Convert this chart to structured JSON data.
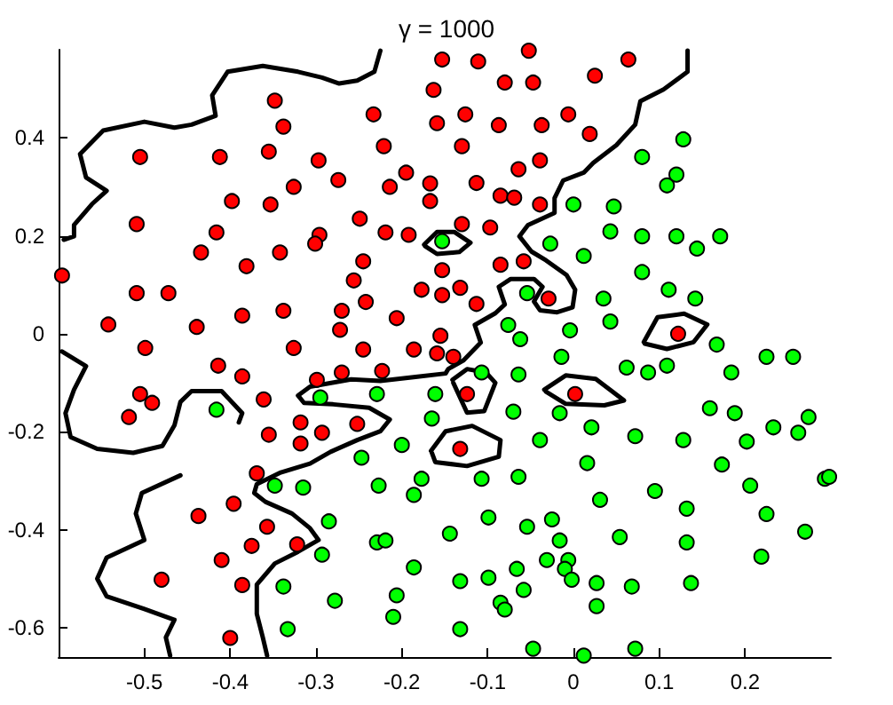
{
  "chart_data": {
    "type": "scatter",
    "title": "γ = 1000",
    "xlim": [
      -0.6,
      0.3
    ],
    "ylim": [
      -0.66,
      0.58
    ],
    "xticks": [
      -0.5,
      -0.4,
      -0.3,
      -0.2,
      -0.1,
      0,
      0.1,
      0.2
    ],
    "yticks": [
      -0.6,
      -0.4,
      -0.2,
      0,
      0.2,
      0.4
    ],
    "grid": false,
    "marker": "circle",
    "series": [
      {
        "color": "#ff0000",
        "x": [
          -0.348,
          -0.338,
          -0.505,
          -0.412,
          -0.355,
          -0.297,
          -0.274,
          -0.233,
          -0.221,
          -0.195,
          -0.214,
          -0.167,
          -0.167,
          -0.163,
          -0.159,
          -0.153,
          -0.398,
          -0.353,
          -0.326,
          -0.509,
          -0.416,
          -0.434,
          -0.342,
          -0.296,
          -0.301,
          -0.249,
          -0.219,
          -0.192,
          -0.596,
          -0.381,
          -0.245,
          -0.256,
          -0.153,
          -0.509,
          -0.472,
          -0.242,
          -0.177,
          -0.153,
          -0.542,
          -0.439,
          -0.386,
          -0.338,
          -0.27,
          -0.272,
          -0.206,
          -0.155,
          -0.111,
          -0.052,
          0.064,
          0.025,
          -0.08,
          -0.047,
          -0.126,
          -0.087,
          -0.037,
          -0.006,
          0.019,
          -0.13,
          -0.064,
          -0.039,
          -0.113,
          -0.085,
          -0.069,
          -0.039,
          -0.13,
          -0.097,
          -0.085,
          -0.058,
          -0.132,
          -0.113,
          -0.029,
          0.122,
          -0.159,
          -0.14,
          -0.499,
          -0.326,
          -0.245,
          -0.186,
          -0.414,
          -0.386,
          -0.299,
          -0.27,
          -0.223,
          -0.505,
          -0.491,
          -0.518,
          -0.361,
          -0.355,
          -0.318,
          -0.293,
          -0.252,
          -0.318,
          -0.369,
          -0.396,
          -0.437,
          -0.357,
          -0.375,
          -0.322,
          -0.41,
          -0.48,
          -0.386,
          -0.4,
          -0.124,
          0.002,
          -0.132
        ],
        "values": [
          0.476,
          0.423,
          0.361,
          0.361,
          0.372,
          0.354,
          0.314,
          0.448,
          0.383,
          0.329,
          0.3,
          0.307,
          0.271,
          0.498,
          0.43,
          0.56,
          0.271,
          0.264,
          0.3,
          0.224,
          0.207,
          0.166,
          0.166,
          0.202,
          0.184,
          0.235,
          0.207,
          0.202,
          0.119,
          0.138,
          0.148,
          0.109,
          0.13,
          0.083,
          0.083,
          0.065,
          0.09,
          0.079,
          0.019,
          0.014,
          0.037,
          0.047,
          0.047,
          0.008,
          0.032,
          -0.004,
          0.556,
          0.578,
          0.56,
          0.527,
          0.513,
          0.513,
          0.448,
          0.426,
          0.426,
          0.448,
          0.408,
          0.383,
          0.336,
          0.354,
          0.308,
          0.282,
          0.278,
          0.264,
          0.224,
          0.217,
          0.141,
          0.148,
          0.094,
          0.061,
          0.072,
          0.0,
          -0.04,
          -0.047,
          -0.029,
          -0.029,
          -0.032,
          -0.032,
          -0.065,
          -0.087,
          -0.094,
          -0.079,
          -0.076,
          -0.123,
          -0.141,
          -0.17,
          -0.134,
          -0.206,
          -0.181,
          -0.202,
          -0.184,
          -0.224,
          -0.285,
          -0.347,
          -0.372,
          -0.394,
          -0.433,
          -0.43,
          -0.462,
          -0.502,
          -0.513,
          -0.621,
          -0.123,
          -0.123,
          -0.235
        ]
      },
      {
        "color": "#00ff00",
        "x": [
          -0.153,
          0.128,
          0.08,
          0.12,
          0.109,
          0.0,
          0.047,
          0.043,
          0.08,
          0.12,
          0.171,
          0.144,
          -0.027,
          0.012,
          0.08,
          0.111,
          0.142,
          0.035,
          -0.054,
          -0.076,
          -0.004,
          0.043,
          -0.062,
          0.167,
          -0.014,
          0.225,
          0.256,
          -0.416,
          -0.295,
          -0.229,
          -0.161,
          -0.165,
          -0.2,
          -0.247,
          -0.348,
          -0.315,
          -0.227,
          -0.177,
          -0.186,
          -0.285,
          -0.229,
          -0.219,
          -0.293,
          -0.186,
          -0.338,
          -0.278,
          -0.206,
          -0.21,
          -0.333,
          -0.107,
          -0.064,
          0.062,
          0.087,
          0.109,
          0.184,
          -0.07,
          -0.016,
          0.159,
          0.188,
          0.274,
          0.021,
          0.233,
          0.262,
          0.072,
          0.128,
          0.202,
          -0.039,
          0.173,
          0.016,
          -0.107,
          -0.064,
          0.206,
          0.293,
          0.298,
          0.031,
          0.095,
          0.132,
          0.225,
          0.27,
          -0.144,
          -0.099,
          -0.054,
          -0.025,
          -0.016,
          0.054,
          0.132,
          0.219,
          -0.031,
          -0.006,
          -0.01,
          -0.066,
          -0.002,
          0.027,
          0.068,
          0.137,
          -0.132,
          -0.099,
          -0.058,
          -0.085,
          -0.08,
          0.027,
          -0.132,
          -0.047,
          0.012,
          0.072
        ],
        "values": [
          0.189,
          0.397,
          0.361,
          0.325,
          0.303,
          0.264,
          0.26,
          0.209,
          0.199,
          0.199,
          0.199,
          0.174,
          0.184,
          0.159,
          0.126,
          0.09,
          0.072,
          0.072,
          0.083,
          0.018,
          0.007,
          0.025,
          -0.011,
          -0.022,
          -0.047,
          -0.047,
          -0.047,
          -0.155,
          -0.13,
          -0.123,
          -0.123,
          -0.173,
          -0.227,
          -0.253,
          -0.31,
          -0.314,
          -0.31,
          -0.296,
          -0.329,
          -0.383,
          -0.426,
          -0.422,
          -0.451,
          -0.477,
          -0.516,
          -0.545,
          -0.534,
          -0.578,
          -0.603,
          -0.079,
          -0.083,
          -0.069,
          -0.079,
          -0.065,
          -0.079,
          -0.159,
          -0.162,
          -0.152,
          -0.162,
          -0.17,
          -0.191,
          -0.191,
          -0.202,
          -0.209,
          -0.217,
          -0.22,
          -0.217,
          -0.267,
          -0.264,
          -0.296,
          -0.292,
          -0.31,
          -0.296,
          -0.292,
          -0.339,
          -0.321,
          -0.357,
          -0.368,
          -0.404,
          -0.408,
          -0.375,
          -0.394,
          -0.379,
          -0.422,
          -0.415,
          -0.426,
          -0.455,
          -0.462,
          -0.462,
          -0.48,
          -0.48,
          -0.502,
          -0.509,
          -0.516,
          -0.509,
          -0.505,
          -0.498,
          -0.523,
          -0.549,
          -0.563,
          -0.556,
          -0.603,
          -0.643,
          -0.657,
          -0.643
        ]
      },
      {
        "type": "line",
        "color": "#000000",
        "marker": "none",
        "x": [
          -0.225,
          -0.232,
          -0.252,
          -0.273,
          -0.293,
          -0.321,
          -0.362,
          -0.403,
          -0.421,
          -0.417,
          -0.445,
          -0.465,
          -0.5,
          -0.548,
          -0.575,
          -0.568,
          -0.544,
          -0.561,
          -0.582,
          -0.582,
          -0.594
        ],
        "values": [
          0.578,
          0.535,
          0.517,
          0.511,
          0.523,
          0.535,
          0.547,
          0.535,
          0.487,
          0.445,
          0.427,
          0.421,
          0.433,
          0.415,
          0.367,
          0.319,
          0.292,
          0.265,
          0.222,
          0.199,
          0.192
        ]
      },
      {
        "type": "line",
        "color": "#000000",
        "marker": "none",
        "x": [
          0.133,
          0.133,
          0.105,
          0.078,
          0.072,
          0.05,
          0.023,
          0.012,
          -0.012,
          -0.022,
          -0.022,
          -0.053,
          -0.063,
          -0.049,
          -0.032,
          -0.008,
          0.002,
          -0.001,
          -0.019,
          -0.039,
          -0.046,
          -0.036,
          -0.046,
          -0.073,
          -0.087,
          -0.08,
          -0.091,
          -0.115,
          -0.108,
          -0.128,
          -0.146,
          -0.149,
          -0.184,
          -0.225,
          -0.259,
          -0.307,
          -0.321,
          -0.314,
          -0.28,
          -0.238,
          -0.214,
          -0.225,
          -0.252,
          -0.283,
          -0.307,
          -0.341,
          -0.369,
          -0.372,
          -0.359,
          -0.328,
          -0.307,
          -0.297,
          -0.321,
          -0.348,
          -0.369,
          -0.369,
          -0.362,
          -0.357
        ],
        "values": [
          0.578,
          0.535,
          0.499,
          0.475,
          0.427,
          0.385,
          0.349,
          0.329,
          0.313,
          0.277,
          0.247,
          0.222,
          0.199,
          0.168,
          0.15,
          0.12,
          0.09,
          0.054,
          0.044,
          0.048,
          0.066,
          0.096,
          0.112,
          0.112,
          0.096,
          0.06,
          0.042,
          0.018,
          -0.018,
          -0.054,
          -0.072,
          -0.081,
          -0.088,
          -0.096,
          -0.093,
          -0.108,
          -0.126,
          -0.141,
          -0.144,
          -0.151,
          -0.175,
          -0.199,
          -0.217,
          -0.241,
          -0.265,
          -0.283,
          -0.307,
          -0.325,
          -0.343,
          -0.367,
          -0.397,
          -0.421,
          -0.445,
          -0.469,
          -0.512,
          -0.572,
          -0.62,
          -0.657
        ]
      },
      {
        "type": "line",
        "color": "#000000",
        "marker": "none",
        "x": [
          -0.596,
          -0.568,
          -0.582,
          -0.592,
          -0.586,
          -0.555,
          -0.513,
          -0.479,
          -0.465,
          -0.458,
          -0.445,
          -0.41,
          -0.386,
          -0.39
        ],
        "values": [
          -0.036,
          -0.066,
          -0.114,
          -0.162,
          -0.211,
          -0.235,
          -0.243,
          -0.229,
          -0.187,
          -0.139,
          -0.117,
          -0.117,
          -0.162,
          -0.181
        ]
      },
      {
        "type": "line",
        "color": "#000000",
        "marker": "none",
        "x": [
          -0.47,
          -0.475,
          -0.465,
          -0.5,
          -0.544,
          -0.555,
          -0.544,
          -0.5,
          -0.51,
          -0.503,
          -0.458
        ],
        "values": [
          -0.657,
          -0.62,
          -0.584,
          -0.562,
          -0.536,
          -0.5,
          -0.457,
          -0.421,
          -0.367,
          -0.325,
          -0.289
        ]
      },
      {
        "type": "line",
        "color": "#000000",
        "marker": "none",
        "x": [
          -0.174,
          -0.159,
          -0.139,
          -0.12,
          -0.133,
          -0.159,
          -0.173
        ],
        "values": [
          0.182,
          0.208,
          0.208,
          0.186,
          0.167,
          0.163,
          0.179
        ]
      },
      {
        "type": "line",
        "color": "#000000",
        "marker": "none",
        "x": [
          0.082,
          0.098,
          0.129,
          0.156,
          0.14,
          0.109,
          0.083
        ],
        "values": [
          -0.017,
          0.034,
          0.041,
          0.019,
          -0.017,
          -0.031,
          -0.02
        ]
      },
      {
        "type": "line",
        "color": "#000000",
        "marker": "none",
        "x": [
          -0.141,
          -0.124,
          -0.102,
          -0.091,
          -0.104,
          -0.124,
          -0.14
        ],
        "values": [
          -0.094,
          -0.072,
          -0.079,
          -0.1,
          -0.158,
          -0.161,
          -0.1
        ]
      },
      {
        "type": "line",
        "color": "#000000",
        "marker": "none",
        "x": [
          -0.034,
          -0.009,
          0.026,
          0.059,
          0.036,
          -0.009,
          -0.032
        ],
        "values": [
          -0.114,
          -0.085,
          -0.092,
          -0.136,
          -0.146,
          -0.143,
          -0.118
        ]
      },
      {
        "type": "line",
        "color": "#000000",
        "marker": "none",
        "x": [
          -0.166,
          -0.149,
          -0.118,
          -0.085,
          -0.087,
          -0.124,
          -0.161,
          -0.165
        ],
        "values": [
          -0.239,
          -0.199,
          -0.188,
          -0.217,
          -0.251,
          -0.27,
          -0.262,
          -0.243
        ]
      }
    ]
  }
}
